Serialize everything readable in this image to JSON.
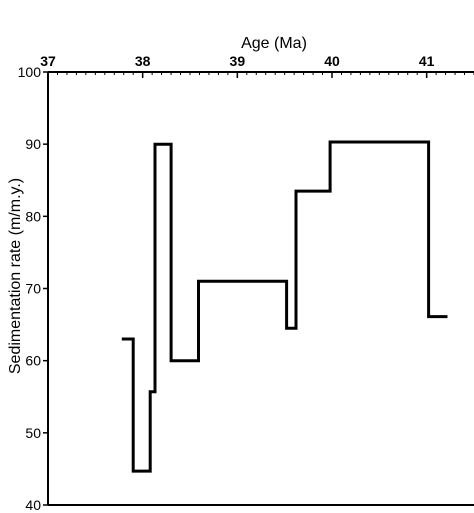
{
  "chart_data": {
    "type": "line",
    "title": "",
    "xlabel": "Age (Ma)",
    "ylabel": "Sedimentation rate (m/m.y.)",
    "x_axis_position": "top",
    "xlim": [
      37,
      41.5
    ],
    "ylim": [
      40,
      100
    ],
    "x_ticks": [
      "37",
      "38",
      "39",
      "40",
      "41"
    ],
    "y_ticks": [
      "40",
      "50",
      "60",
      "70",
      "80",
      "90",
      "100"
    ],
    "grid": false,
    "legend": "none",
    "line_color": "#000000",
    "series": [
      {
        "step": true,
        "points": [
          {
            "x": 37.78,
            "y": 63
          },
          {
            "x": 37.9,
            "y": 63
          },
          {
            "x": 37.9,
            "y": 44.7
          },
          {
            "x": 38.08,
            "y": 44.7
          },
          {
            "x": 38.08,
            "y": 55.7
          },
          {
            "x": 38.13,
            "y": 55.7
          },
          {
            "x": 38.13,
            "y": 90
          },
          {
            "x": 38.3,
            "y": 90
          },
          {
            "x": 38.3,
            "y": 60
          },
          {
            "x": 38.59,
            "y": 60
          },
          {
            "x": 38.59,
            "y": 71
          },
          {
            "x": 39.52,
            "y": 71
          },
          {
            "x": 39.52,
            "y": 64.5
          },
          {
            "x": 39.62,
            "y": 64.5
          },
          {
            "x": 39.62,
            "y": 83.5
          },
          {
            "x": 39.98,
            "y": 83.5
          },
          {
            "x": 39.98,
            "y": 90.3
          },
          {
            "x": 41.02,
            "y": 90.3
          },
          {
            "x": 41.02,
            "y": 66.1
          },
          {
            "x": 41.22,
            "y": 66.1
          }
        ]
      }
    ]
  }
}
